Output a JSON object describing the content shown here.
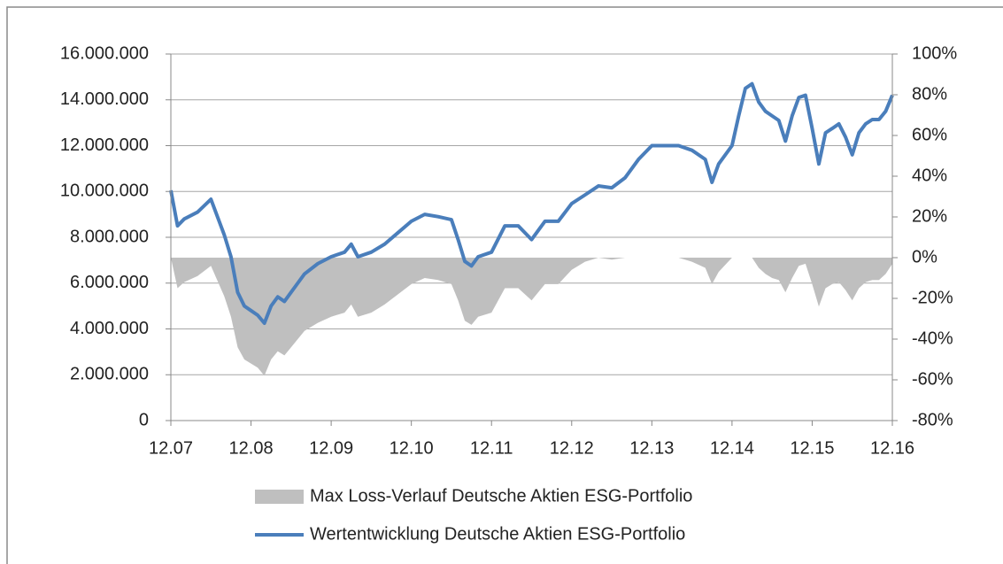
{
  "chart_data": {
    "type": "line",
    "x": [
      0,
      1,
      2,
      4,
      6,
      8,
      9,
      10,
      11,
      12,
      13,
      14,
      15,
      16,
      17,
      18,
      19,
      20,
      22,
      24,
      26,
      27,
      28,
      30,
      32,
      34,
      36,
      38,
      40,
      42,
      43,
      44,
      45,
      46,
      48,
      50,
      52,
      54,
      56,
      58,
      60,
      62,
      64,
      66,
      68,
      70,
      72,
      74,
      76,
      78,
      80,
      81,
      82,
      84,
      85,
      86,
      87,
      88,
      89,
      90,
      91,
      92,
      93,
      94,
      95,
      96,
      97,
      98,
      99,
      100,
      101,
      102,
      103,
      104,
      105,
      106,
      107,
      108
    ],
    "series": [
      {
        "name": "Max Loss-Verlauf Deutsche Aktien ESG-Portfolio",
        "color": "#bfbfbf",
        "type": "area",
        "axis": "y2",
        "values": [
          0,
          -15,
          -12,
          -9,
          -4,
          -19,
          -29,
          -44,
          -50,
          -52,
          -54,
          -58,
          -50,
          -46,
          -48,
          -44,
          -40,
          -36,
          -32,
          -29,
          -27,
          -23,
          -29,
          -27,
          -23,
          -18,
          -13,
          -10,
          -11,
          -13,
          -21,
          -31,
          -33,
          -29,
          -27,
          -15,
          -15,
          -21,
          -13,
          -13,
          -6,
          -2,
          0,
          -1,
          0,
          0,
          0,
          0,
          0,
          -2,
          -5,
          -13,
          -7,
          0,
          0,
          0,
          0,
          -5,
          -8,
          -10,
          -11,
          -17,
          -10,
          -4,
          -3,
          -13,
          -24,
          -15,
          -13,
          -12,
          -16,
          -21,
          -15,
          -12,
          -11,
          -11,
          -8,
          -3
        ]
      },
      {
        "name": "Wertentwicklung Deutsche Aktien ESG-Portfolio",
        "color": "#4a7ebb",
        "type": "line",
        "values": [
          10050000,
          8500000,
          8800000,
          9100000,
          9660000,
          8100000,
          7150000,
          5600000,
          5000000,
          4800000,
          4600000,
          4250000,
          5000000,
          5400000,
          5200000,
          5600000,
          6000000,
          6400000,
          6850000,
          7150000,
          7350000,
          7700000,
          7150000,
          7350000,
          7700000,
          8200000,
          8700000,
          9000000,
          8900000,
          8770000,
          7900000,
          6950000,
          6750000,
          7150000,
          7350000,
          8500000,
          8500000,
          7900000,
          8700000,
          8700000,
          9470000,
          9850000,
          10240000,
          10160000,
          10600000,
          11400000,
          12000000,
          12000000,
          12000000,
          11800000,
          11400000,
          10400000,
          11200000,
          12000000,
          13300000,
          14500000,
          14700000,
          13900000,
          13500000,
          13300000,
          13100000,
          12200000,
          13300000,
          14100000,
          14200000,
          12750000,
          11200000,
          12560000,
          12750000,
          12950000,
          12370000,
          11600000,
          12560000,
          12950000,
          13140000,
          13140000,
          13500000,
          14200000
        ]
      }
    ],
    "xlim": [
      0,
      108
    ],
    "xticks": [
      {
        "value": 0,
        "label": "12.07"
      },
      {
        "value": 12,
        "label": "12.08"
      },
      {
        "value": 24,
        "label": "12.09"
      },
      {
        "value": 36,
        "label": "12.10"
      },
      {
        "value": 48,
        "label": "12.11"
      },
      {
        "value": 60,
        "label": "12.12"
      },
      {
        "value": 72,
        "label": "12.13"
      },
      {
        "value": 84,
        "label": "12.14"
      },
      {
        "value": 96,
        "label": "12.15"
      },
      {
        "value": 108,
        "label": "12.16"
      }
    ],
    "ylim": [
      0,
      16000000
    ],
    "yticks": [
      0,
      {
        "value": 2000000,
        "label": "2.000.000"
      },
      {
        "value": 4000000,
        "label": "4.000.000"
      },
      {
        "value": 6000000,
        "label": "6.000.000"
      },
      {
        "value": 8000000,
        "label": "8.000.000"
      },
      {
        "value": 10000000,
        "label": "10.000.000"
      },
      {
        "value": 12000000,
        "label": "12.000.000"
      },
      {
        "value": 14000000,
        "label": "14.000.000"
      },
      {
        "value": 16000000,
        "label": "16.000.000"
      }
    ],
    "y2lim": [
      -80,
      100
    ],
    "y2ticks": [
      {
        "value": -80,
        "label": "-80%"
      },
      {
        "value": -60,
        "label": "-60%"
      },
      {
        "value": -40,
        "label": "-40%"
      },
      {
        "value": -20,
        "label": "-20%"
      },
      {
        "value": 0,
        "label": "0%"
      },
      {
        "value": 20,
        "label": "20%"
      },
      {
        "value": 40,
        "label": "40%"
      },
      {
        "value": 60,
        "label": "60%"
      },
      {
        "value": 80,
        "label": "80%"
      },
      {
        "value": 100,
        "label": "100%"
      }
    ],
    "grid": true,
    "legend": "bottom"
  }
}
